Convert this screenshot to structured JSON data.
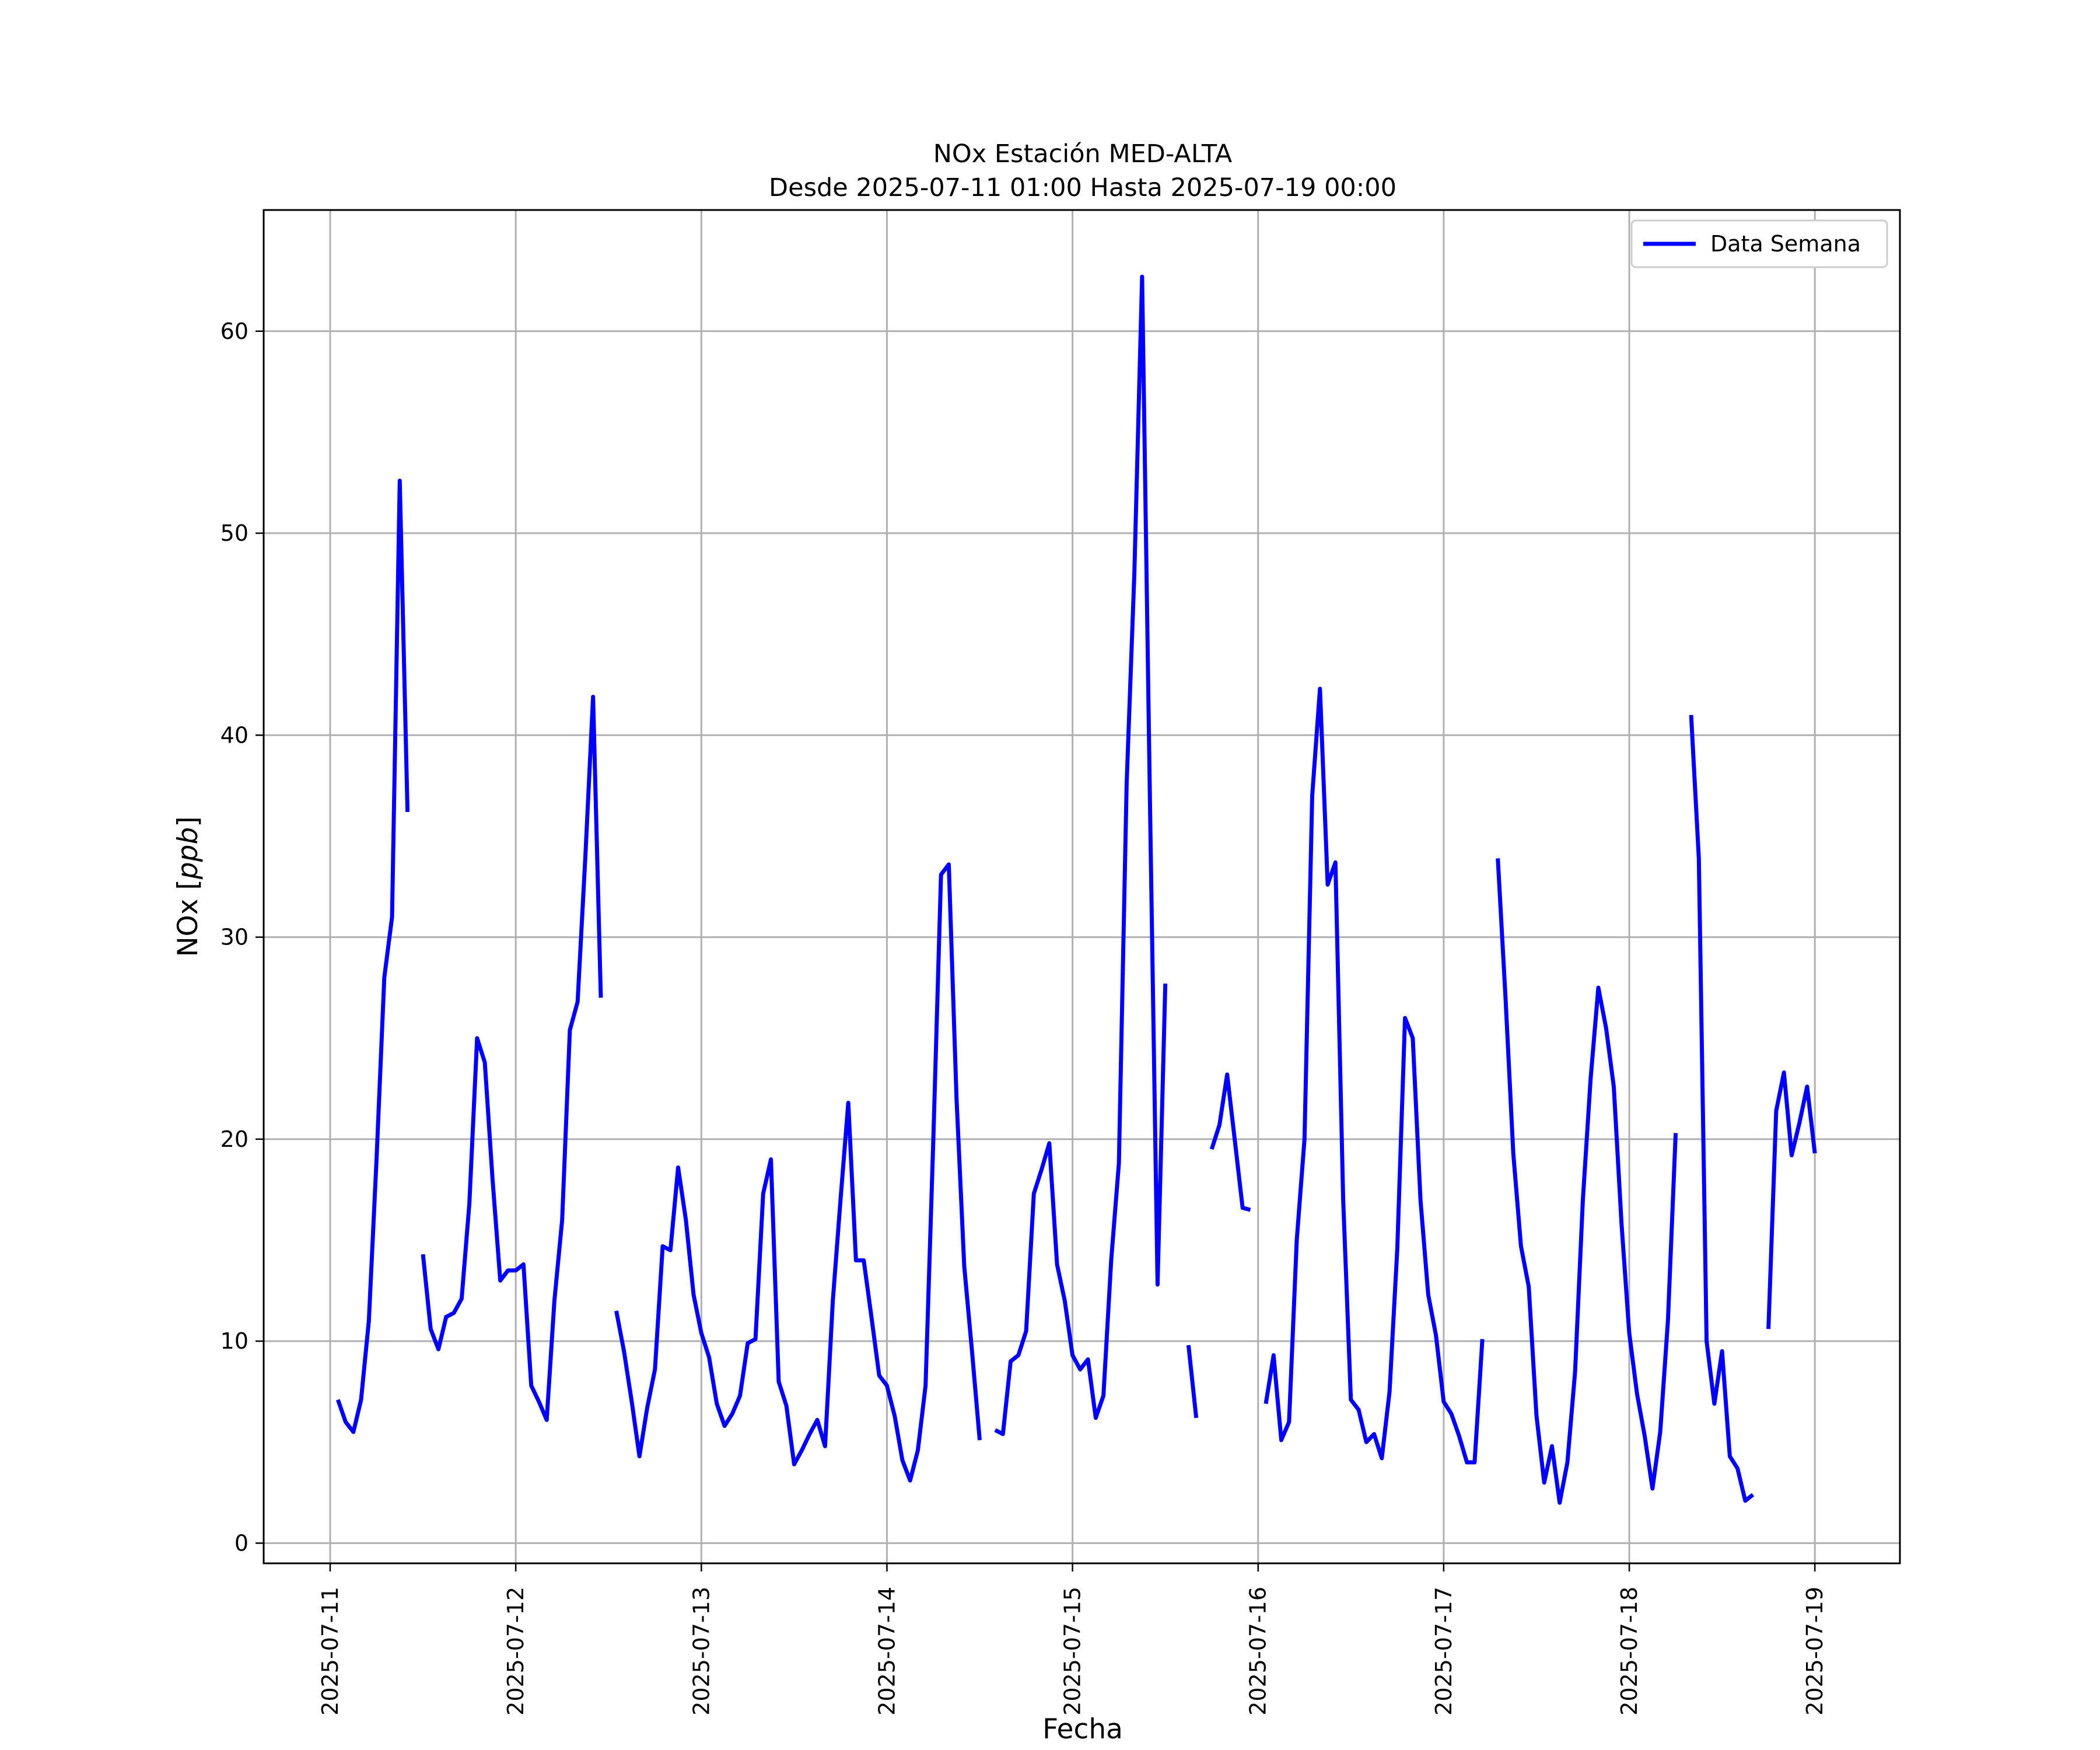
{
  "chart_data": {
    "type": "line",
    "title": "NOx Estación MED-ALTA",
    "subtitle": "Desde 2025-07-11 01:00 Hasta 2025-07-19 00:00",
    "xlabel": "Fecha",
    "ylabel": "NOx [ppb]",
    "grid": true,
    "legend_position": "top-right",
    "x_ticks": [
      "2025-07-11",
      "2025-07-12",
      "2025-07-13",
      "2025-07-14",
      "2025-07-15",
      "2025-07-16",
      "2025-07-17",
      "2025-07-18",
      "2025-07-19"
    ],
    "y_ticks": [
      0,
      10,
      20,
      30,
      40,
      50,
      60
    ],
    "xlim": [
      "2025-07-10 15:24",
      "2025-07-19 11:00"
    ],
    "ylim": [
      -1,
      66
    ],
    "series": [
      {
        "name": "Data Semana",
        "color": "#0000ff",
        "segments": [
          [
            [
              "2025-07-11 01:00",
              7.1
            ],
            [
              "2025-07-11 02:00",
              6.0
            ],
            [
              "2025-07-11 03:00",
              5.5
            ],
            [
              "2025-07-11 04:00",
              7.1
            ],
            [
              "2025-07-11 05:00",
              11.0
            ],
            [
              "2025-07-11 06:00",
              19.0
            ],
            [
              "2025-07-11 07:00",
              28.0
            ],
            [
              "2025-07-11 08:00",
              31.0
            ],
            [
              "2025-07-11 09:00",
              52.6
            ],
            [
              "2025-07-11 10:00",
              36.2
            ]
          ],
          [
            [
              "2025-07-11 12:00",
              14.3
            ],
            [
              "2025-07-11 13:00",
              10.6
            ],
            [
              "2025-07-11 14:00",
              9.6
            ],
            [
              "2025-07-11 15:00",
              11.2
            ],
            [
              "2025-07-11 16:00",
              11.4
            ],
            [
              "2025-07-11 17:00",
              12.1
            ],
            [
              "2025-07-11 18:00",
              16.8
            ],
            [
              "2025-07-11 19:00",
              25.0
            ],
            [
              "2025-07-11 20:00",
              23.8
            ],
            [
              "2025-07-11 21:00",
              18.0
            ],
            [
              "2025-07-11 22:00",
              13.0
            ],
            [
              "2025-07-11 23:00",
              13.5
            ],
            [
              "2025-07-12 00:00",
              13.5
            ],
            [
              "2025-07-12 01:00",
              13.8
            ],
            [
              "2025-07-12 02:00",
              7.8
            ],
            [
              "2025-07-12 03:00",
              7.0
            ],
            [
              "2025-07-12 04:00",
              6.1
            ],
            [
              "2025-07-12 05:00",
              12.0
            ],
            [
              "2025-07-12 06:00",
              16.0
            ],
            [
              "2025-07-12 07:00",
              25.4
            ],
            [
              "2025-07-12 08:00",
              26.8
            ],
            [
              "2025-07-12 09:00",
              34.0
            ],
            [
              "2025-07-12 10:00",
              41.9
            ],
            [
              "2025-07-12 11:00",
              27.0
            ]
          ],
          [
            [
              "2025-07-12 13:00",
              11.5
            ],
            [
              "2025-07-12 14:00",
              9.5
            ],
            [
              "2025-07-12 15:00",
              7.0
            ],
            [
              "2025-07-12 16:00",
              4.3
            ],
            [
              "2025-07-12 17:00",
              6.7
            ],
            [
              "2025-07-12 18:00",
              8.6
            ],
            [
              "2025-07-12 19:00",
              14.7
            ],
            [
              "2025-07-12 20:00",
              14.5
            ],
            [
              "2025-07-12 21:00",
              18.6
            ],
            [
              "2025-07-12 22:00",
              16.0
            ],
            [
              "2025-07-12 23:00",
              12.3
            ],
            [
              "2025-07-13 00:00",
              10.4
            ],
            [
              "2025-07-13 01:00",
              9.2
            ],
            [
              "2025-07-13 02:00",
              6.9
            ],
            [
              "2025-07-13 03:00",
              5.8
            ],
            [
              "2025-07-13 04:00",
              6.4
            ],
            [
              "2025-07-13 05:00",
              7.3
            ],
            [
              "2025-07-13 06:00",
              9.9
            ],
            [
              "2025-07-13 07:00",
              10.1
            ],
            [
              "2025-07-13 08:00",
              17.3
            ],
            [
              "2025-07-13 09:00",
              19.0
            ],
            [
              "2025-07-13 10:00",
              8.0
            ],
            [
              "2025-07-13 11:00",
              6.8
            ],
            [
              "2025-07-13 12:00",
              3.9
            ],
            [
              "2025-07-13 13:00",
              4.6
            ],
            [
              "2025-07-13 14:00",
              5.4
            ],
            [
              "2025-07-13 15:00",
              6.1
            ],
            [
              "2025-07-13 16:00",
              4.8
            ],
            [
              "2025-07-13 17:00",
              12.0
            ],
            [
              "2025-07-13 18:00",
              17.0
            ],
            [
              "2025-07-13 19:00",
              21.8
            ],
            [
              "2025-07-13 20:00",
              14.0
            ],
            [
              "2025-07-13 21:00",
              14.0
            ],
            [
              "2025-07-13 22:00",
              11.2
            ],
            [
              "2025-07-13 23:00",
              8.3
            ],
            [
              "2025-07-14 00:00",
              7.8
            ],
            [
              "2025-07-14 01:00",
              6.3
            ],
            [
              "2025-07-14 02:00",
              4.1
            ],
            [
              "2025-07-14 03:00",
              3.1
            ],
            [
              "2025-07-14 04:00",
              4.6
            ],
            [
              "2025-07-14 05:00",
              7.8
            ],
            [
              "2025-07-14 06:00",
              20.0
            ],
            [
              "2025-07-14 07:00",
              33.1
            ],
            [
              "2025-07-14 08:00",
              33.6
            ],
            [
              "2025-07-14 09:00",
              22.0
            ],
            [
              "2025-07-14 10:00",
              13.7
            ],
            [
              "2025-07-14 11:00",
              9.5
            ],
            [
              "2025-07-14 12:00",
              5.1
            ]
          ],
          [
            [
              "2025-07-14 14:00",
              5.6
            ],
            [
              "2025-07-14 15:00",
              5.4
            ],
            [
              "2025-07-14 16:00",
              9.0
            ],
            [
              "2025-07-14 17:00",
              9.3
            ],
            [
              "2025-07-14 18:00",
              10.5
            ],
            [
              "2025-07-14 19:00",
              17.3
            ],
            [
              "2025-07-14 20:00",
              18.5
            ],
            [
              "2025-07-14 21:00",
              19.8
            ],
            [
              "2025-07-14 22:00",
              13.8
            ],
            [
              "2025-07-14 23:00",
              12.0
            ],
            [
              "2025-07-15 00:00",
              9.3
            ],
            [
              "2025-07-15 01:00",
              8.6
            ],
            [
              "2025-07-15 02:00",
              9.1
            ],
            [
              "2025-07-15 03:00",
              6.2
            ],
            [
              "2025-07-15 04:00",
              7.3
            ],
            [
              "2025-07-15 05:00",
              14.0
            ],
            [
              "2025-07-15 06:00",
              18.8
            ],
            [
              "2025-07-15 07:00",
              37.6
            ],
            [
              "2025-07-15 08:00",
              48.0
            ],
            [
              "2025-07-15 09:00",
              62.7
            ],
            [
              "2025-07-15 10:00",
              37.0
            ],
            [
              "2025-07-15 11:00",
              12.8
            ],
            [
              "2025-07-15 12:00",
              27.7
            ]
          ],
          [
            [
              "2025-07-15 15:00",
              9.8
            ],
            [
              "2025-07-15 16:00",
              6.2
            ]
          ],
          [
            [
              "2025-07-15 18:00",
              19.5
            ],
            [
              "2025-07-15 19:00",
              20.7
            ],
            [
              "2025-07-15 20:00",
              23.2
            ],
            [
              "2025-07-15 21:00",
              19.9
            ],
            [
              "2025-07-15 22:00",
              16.6
            ],
            [
              "2025-07-15 23:00",
              16.5
            ]
          ],
          [
            [
              "2025-07-16 01:00",
              6.9
            ],
            [
              "2025-07-16 02:00",
              9.3
            ],
            [
              "2025-07-16 03:00",
              5.1
            ],
            [
              "2025-07-16 04:00",
              6.0
            ],
            [
              "2025-07-16 05:00",
              15.0
            ],
            [
              "2025-07-16 06:00",
              20.0
            ],
            [
              "2025-07-16 07:00",
              37.0
            ],
            [
              "2025-07-16 08:00",
              42.3
            ],
            [
              "2025-07-16 09:00",
              32.6
            ],
            [
              "2025-07-16 10:00",
              33.7
            ],
            [
              "2025-07-16 11:00",
              17.0
            ],
            [
              "2025-07-16 12:00",
              7.1
            ],
            [
              "2025-07-16 13:00",
              6.6
            ],
            [
              "2025-07-16 14:00",
              5.0
            ],
            [
              "2025-07-16 15:00",
              5.4
            ],
            [
              "2025-07-16 16:00",
              4.2
            ],
            [
              "2025-07-16 17:00",
              7.5
            ],
            [
              "2025-07-16 18:00",
              14.6
            ],
            [
              "2025-07-16 19:00",
              26.0
            ],
            [
              "2025-07-16 20:00",
              25.0
            ],
            [
              "2025-07-16 21:00",
              17.0
            ],
            [
              "2025-07-16 22:00",
              12.3
            ],
            [
              "2025-07-16 23:00",
              10.3
            ],
            [
              "2025-07-17 00:00",
              7.0
            ],
            [
              "2025-07-17 01:00",
              6.4
            ],
            [
              "2025-07-17 02:00",
              5.3
            ],
            [
              "2025-07-17 03:00",
              4.0
            ],
            [
              "2025-07-17 04:00",
              4.0
            ],
            [
              "2025-07-17 05:00",
              10.1
            ]
          ],
          [
            [
              "2025-07-17 07:00",
              33.9
            ],
            [
              "2025-07-17 08:00",
              27.0
            ],
            [
              "2025-07-17 09:00",
              19.3
            ],
            [
              "2025-07-17 10:00",
              14.7
            ],
            [
              "2025-07-17 11:00",
              12.7
            ],
            [
              "2025-07-17 12:00",
              6.3
            ],
            [
              "2025-07-17 13:00",
              3.0
            ],
            [
              "2025-07-17 14:00",
              4.8
            ],
            [
              "2025-07-17 15:00",
              2.0
            ],
            [
              "2025-07-17 16:00",
              4.0
            ],
            [
              "2025-07-17 17:00",
              8.5
            ],
            [
              "2025-07-17 18:00",
              17.0
            ],
            [
              "2025-07-17 19:00",
              23.0
            ],
            [
              "2025-07-17 20:00",
              27.5
            ],
            [
              "2025-07-17 21:00",
              25.5
            ],
            [
              "2025-07-17 22:00",
              22.6
            ],
            [
              "2025-07-17 23:00",
              15.8
            ],
            [
              "2025-07-18 00:00",
              10.4
            ],
            [
              "2025-07-18 01:00",
              7.4
            ],
            [
              "2025-07-18 02:00",
              5.3
            ],
            [
              "2025-07-18 03:00",
              2.7
            ],
            [
              "2025-07-18 04:00",
              5.5
            ],
            [
              "2025-07-18 05:00",
              11.0
            ],
            [
              "2025-07-18 06:00",
              20.3
            ]
          ],
          [
            [
              "2025-07-18 08:00",
              41.0
            ],
            [
              "2025-07-18 09:00",
              33.9
            ],
            [
              "2025-07-18 10:00",
              10.0
            ],
            [
              "2025-07-18 11:00",
              6.9
            ],
            [
              "2025-07-18 12:00",
              9.5
            ],
            [
              "2025-07-18 13:00",
              4.3
            ],
            [
              "2025-07-18 14:00",
              3.7
            ],
            [
              "2025-07-18 15:00",
              2.1
            ],
            [
              "2025-07-18 16:00",
              2.4
            ]
          ],
          [
            [
              "2025-07-18 18:00",
              10.6
            ],
            [
              "2025-07-18 19:00",
              21.4
            ],
            [
              "2025-07-18 20:00",
              23.3
            ],
            [
              "2025-07-18 21:00",
              19.2
            ],
            [
              "2025-07-18 22:00",
              20.8
            ],
            [
              "2025-07-18 23:00",
              22.6
            ],
            [
              "2025-07-19 00:00",
              19.3
            ]
          ]
        ]
      }
    ]
  }
}
